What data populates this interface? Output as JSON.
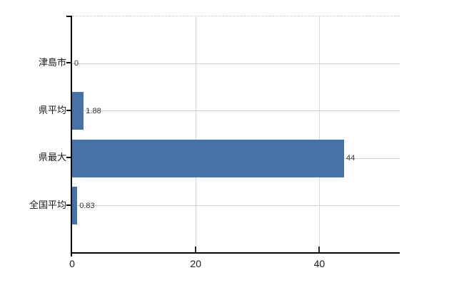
{
  "chart": {
    "background_color": "#ffffff",
    "bar_color": "#4572a7",
    "axis_color": "#000000",
    "hgrid_color": "#ccd3cc",
    "vgrid_color": "#d4dad4",
    "plot_border_color": "#cfcfcf",
    "category_label_color": "#1a1a1a",
    "tick_label_color": "#1a1a1a",
    "value_label_color": "#333333"
  },
  "chart_data": {
    "type": "bar",
    "orientation": "horizontal",
    "title": "",
    "xlabel": "",
    "ylabel": "",
    "categories": [
      "津島市",
      "県平均",
      "県最大",
      "全国平均"
    ],
    "values": [
      0,
      1.88,
      44,
      0.83
    ],
    "value_labels": [
      "0",
      "1.88",
      "44",
      "0.83"
    ],
    "x_ticks": [
      0,
      20,
      40
    ],
    "x_tick_labels": [
      "0",
      "20",
      "40"
    ],
    "xlim": [
      0,
      53
    ],
    "grid": true,
    "legend": false
  }
}
